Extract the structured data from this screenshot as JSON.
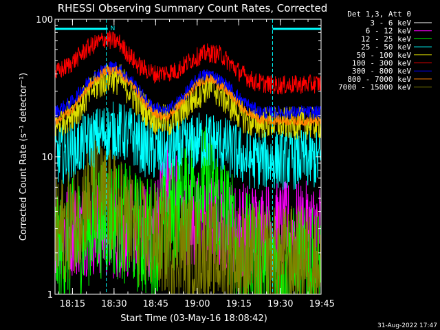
{
  "chart_data": {
    "type": "line",
    "title": "RHESSI Observing Summary Count Rates, Corrected",
    "xlabel": "Start Time (03-May-16 18:08:42)",
    "ylabel": "Corrected Count Rate (s⁻¹ detector⁻¹)",
    "y_scale": "log",
    "ylim": [
      1,
      100
    ],
    "y_ticks": [
      {
        "value": 1,
        "label": "1"
      },
      {
        "value": 10,
        "label": "10"
      },
      {
        "value": 100,
        "label": "100"
      }
    ],
    "xlim_minutes": [
      0,
      96
    ],
    "x_ticks": [
      {
        "minute": 6.3,
        "label": "18:15"
      },
      {
        "minute": 21.3,
        "label": "18:30"
      },
      {
        "minute": 36.3,
        "label": "18:45"
      },
      {
        "minute": 51.3,
        "label": "19:00"
      },
      {
        "minute": 66.3,
        "label": "19:15"
      },
      {
        "minute": 81.3,
        "label": "19:30"
      },
      {
        "minute": 96.3,
        "label": "19:45"
      }
    ],
    "legend_header": "Det 1,3, Att 0",
    "legend_position": "right",
    "flag_bars": [
      {
        "label": "N",
        "start": 0,
        "end": 19
      },
      {
        "label": "",
        "start": 78.5,
        "end": 96
      }
    ],
    "markers_minutes": [
      18.5,
      78.5,
      96
    ],
    "series": [
      {
        "name": "3 - 6 keV",
        "color": "#000000",
        "profile": [
          [
            0,
            1.0
          ],
          [
            10,
            1.2
          ],
          [
            17,
            1.9
          ],
          [
            22,
            1.6
          ],
          [
            28,
            1.2
          ],
          [
            38,
            2.1
          ],
          [
            42,
            4.0
          ],
          [
            46,
            3.5
          ],
          [
            50,
            1.3
          ],
          [
            56,
            1.1
          ],
          [
            62,
            1.2
          ],
          [
            68,
            1.0
          ],
          [
            80,
            1.0
          ],
          [
            96,
            1.0
          ]
        ],
        "noise": 0.55,
        "clip_min": 1
      },
      {
        "name": "6 - 12 keV",
        "color": "#ff00ff",
        "profile": [
          [
            0,
            3.0
          ],
          [
            15,
            3.0
          ],
          [
            22,
            2.8
          ],
          [
            28,
            3.0
          ],
          [
            35,
            2.8
          ],
          [
            40,
            6.5
          ],
          [
            44,
            5.0
          ],
          [
            48,
            3.2
          ],
          [
            55,
            3.4
          ],
          [
            65,
            3.0
          ],
          [
            75,
            3.0
          ],
          [
            85,
            3.0
          ],
          [
            96,
            3.0
          ]
        ],
        "noise": 0.35,
        "clip_min": 1
      },
      {
        "name": "12 - 25 keV",
        "color": "#00ff00",
        "profile": [
          [
            0,
            2.2
          ],
          [
            8,
            2.6
          ],
          [
            14,
            3.5
          ],
          [
            20,
            3.8
          ],
          [
            26,
            3.2
          ],
          [
            32,
            2.6
          ],
          [
            38,
            2.8
          ],
          [
            44,
            4.2
          ],
          [
            50,
            6.5
          ],
          [
            56,
            6.0
          ],
          [
            62,
            3.5
          ],
          [
            66,
            2.2
          ],
          [
            72,
            1.8
          ],
          [
            80,
            1.6
          ],
          [
            96,
            1.5
          ]
        ],
        "noise": 0.45,
        "clip_min": 1
      },
      {
        "name": "25 - 50 keV",
        "color": "#00ffff",
        "profile": [
          [
            0,
            10
          ],
          [
            6,
            11
          ],
          [
            12,
            13
          ],
          [
            18,
            15
          ],
          [
            22,
            15.5
          ],
          [
            28,
            14
          ],
          [
            34,
            11
          ],
          [
            40,
            10.5
          ],
          [
            46,
            11.5
          ],
          [
            52,
            13
          ],
          [
            58,
            13
          ],
          [
            64,
            11
          ],
          [
            70,
            9.5
          ],
          [
            80,
            9.5
          ],
          [
            96,
            9.5
          ]
        ],
        "noise": 0.22,
        "clip_min": 1
      },
      {
        "name": "50 - 100 keV",
        "color": "#dddd00",
        "profile": [
          [
            0,
            17
          ],
          [
            8,
            22
          ],
          [
            14,
            32
          ],
          [
            20,
            38
          ],
          [
            24,
            36
          ],
          [
            30,
            25
          ],
          [
            36,
            19
          ],
          [
            42,
            18
          ],
          [
            48,
            24
          ],
          [
            54,
            32
          ],
          [
            58,
            31
          ],
          [
            64,
            23
          ],
          [
            70,
            18
          ],
          [
            80,
            17.5
          ],
          [
            96,
            17.5
          ]
        ],
        "noise": 0.12,
        "clip_min": 1
      },
      {
        "name": "100 - 300 keV",
        "color": "#ff0000",
        "profile": [
          [
            0,
            40
          ],
          [
            6,
            48
          ],
          [
            12,
            62
          ],
          [
            18,
            72
          ],
          [
            23,
            68
          ],
          [
            30,
            46
          ],
          [
            36,
            40
          ],
          [
            44,
            42
          ],
          [
            50,
            52
          ],
          [
            55,
            57
          ],
          [
            60,
            55
          ],
          [
            66,
            42
          ],
          [
            72,
            35
          ],
          [
            80,
            33
          ],
          [
            96,
            34
          ]
        ],
        "noise": 0.07,
        "clip_min": 1
      },
      {
        "name": "300 - 800 keV",
        "color": "#0000ff",
        "profile": [
          [
            0,
            21
          ],
          [
            6,
            25
          ],
          [
            12,
            35
          ],
          [
            18,
            44
          ],
          [
            22,
            45
          ],
          [
            28,
            35
          ],
          [
            34,
            24
          ],
          [
            40,
            21
          ],
          [
            46,
            27
          ],
          [
            52,
            38
          ],
          [
            56,
            40
          ],
          [
            62,
            33
          ],
          [
            68,
            25
          ],
          [
            74,
            21
          ],
          [
            96,
            21
          ]
        ],
        "noise": 0.05,
        "clip_min": 1
      },
      {
        "name": "800 - 7000 keV",
        "color": "#ff8000",
        "profile": [
          [
            0,
            18
          ],
          [
            6,
            22
          ],
          [
            12,
            32
          ],
          [
            18,
            42
          ],
          [
            22,
            43
          ],
          [
            28,
            33
          ],
          [
            34,
            22
          ],
          [
            40,
            19
          ],
          [
            46,
            25
          ],
          [
            52,
            35
          ],
          [
            56,
            37
          ],
          [
            62,
            30
          ],
          [
            68,
            22
          ],
          [
            74,
            18.5
          ],
          [
            96,
            18
          ]
        ],
        "noise": 0.035,
        "clip_min": 1
      },
      {
        "name": "7000 - 15000 keV",
        "color": "#808000",
        "profile": [
          [
            0,
            2.8
          ],
          [
            6,
            3.2
          ],
          [
            10,
            4.5
          ],
          [
            14,
            5.5
          ],
          [
            18,
            5.0
          ],
          [
            24,
            3.8
          ],
          [
            30,
            2.8
          ],
          [
            38,
            2.5
          ],
          [
            46,
            2.2
          ],
          [
            56,
            2.0
          ],
          [
            66,
            1.9
          ],
          [
            76,
            1.8
          ],
          [
            96,
            1.8
          ]
        ],
        "noise": 0.4,
        "clip_min": 1
      }
    ]
  },
  "footer_timestamp": "31-Aug-2022 17:47"
}
